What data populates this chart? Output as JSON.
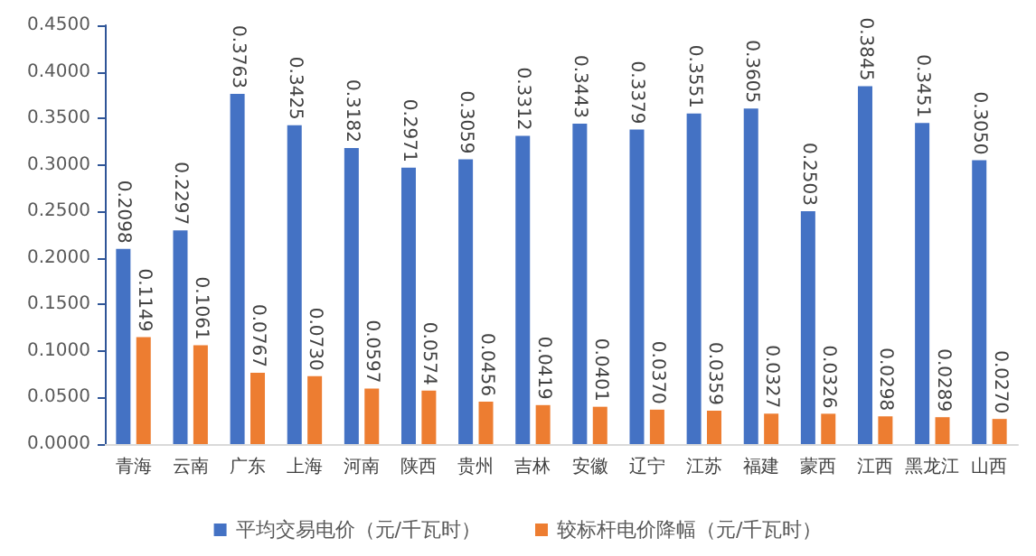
{
  "chart_data": {
    "type": "bar",
    "categories": [
      "青海",
      "云南",
      "广东",
      "上海",
      "河南",
      "陕西",
      "贵州",
      "吉林",
      "安徽",
      "辽宁",
      "江苏",
      "福建",
      "蒙西",
      "江西",
      "黑龙江",
      "山西"
    ],
    "series": [
      {
        "name": "平均交易电价（元/千瓦时）",
        "color": "#4472c4",
        "values": [
          0.2098,
          0.2297,
          0.3763,
          0.3425,
          0.3182,
          0.2971,
          0.3059,
          0.3312,
          0.3443,
          0.3379,
          0.3551,
          0.3605,
          0.2503,
          0.3845,
          0.3451,
          0.305
        ],
        "value_labels": [
          "0.2098",
          "0.2297",
          "0.3763",
          "0.3425",
          "0.3182",
          "0.2971",
          "0.3059",
          "0.3312",
          "0.3443",
          "0.3379",
          "0.3551",
          "0.3605",
          "0.2503",
          "0.3845",
          "0.3451",
          "0.3050"
        ]
      },
      {
        "name": "较标杆电价降幅（元/千瓦时）",
        "color": "#ed7d31",
        "values": [
          0.1149,
          0.1061,
          0.0767,
          0.073,
          0.0597,
          0.0574,
          0.0456,
          0.0419,
          0.0401,
          0.037,
          0.0359,
          0.0327,
          0.0326,
          0.0298,
          0.0289,
          0.027
        ],
        "value_labels": [
          "0.1149",
          "0.1061",
          "0.0767",
          "0.0730",
          "0.0597",
          "0.0574",
          "0.0456",
          "0.0419",
          "0.0401",
          "0.0370",
          "0.0359",
          "0.0327",
          "0.0326",
          "0.0298",
          "0.0289",
          "0.0270"
        ]
      }
    ],
    "ylim": [
      0,
      0.45
    ],
    "yticks": [
      {
        "value": 0,
        "label": "0.0000"
      },
      {
        "value": 0.05,
        "label": "0.0500"
      },
      {
        "value": 0.1,
        "label": "0.1000"
      },
      {
        "value": 0.15,
        "label": "0.1500"
      },
      {
        "value": 0.2,
        "label": "0.2000"
      },
      {
        "value": 0.25,
        "label": "0.2500"
      },
      {
        "value": 0.3,
        "label": "0.3000"
      },
      {
        "value": 0.35,
        "label": "0.3500"
      },
      {
        "value": 0.4,
        "label": "0.4000"
      },
      {
        "value": 0.45,
        "label": "0.4500"
      }
    ],
    "grid": false,
    "legend": "bottom"
  }
}
